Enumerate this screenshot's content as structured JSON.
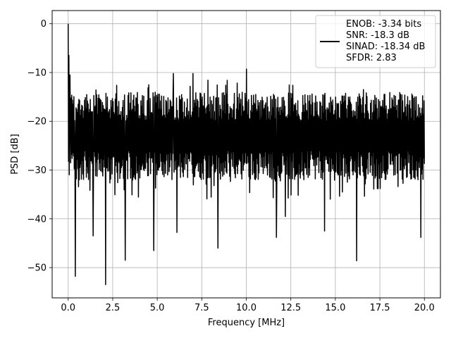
{
  "chart_data": {
    "type": "line",
    "title": "",
    "xlabel": "Frequency [MHz]",
    "ylabel": "PSD [dB]",
    "xlim": [
      -0.9,
      20.9
    ],
    "ylim": [
      -56.2,
      2.7
    ],
    "xticks": [
      0.0,
      2.5,
      5.0,
      7.5,
      10.0,
      12.5,
      15.0,
      17.5,
      20.0
    ],
    "xtick_labels": [
      "0.0",
      "2.5",
      "5.0",
      "7.5",
      "10.0",
      "12.5",
      "15.0",
      "17.5",
      "20.0"
    ],
    "yticks": [
      0,
      -10,
      -20,
      -30,
      -40,
      -50
    ],
    "ytick_labels": [
      "0",
      "−10",
      "−20",
      "−30",
      "−40",
      "−50"
    ],
    "grid": true,
    "legend_position": "top-right",
    "legend_entries": [
      "ENOB: -3.34 bits",
      "SNR: -18.3 dB",
      "SINAD: -18.34 dB",
      "SFDR: 2.83"
    ],
    "series": [
      {
        "color": "#000000",
        "x_range": [
          0.0,
          20.0
        ],
        "points": 1000,
        "peak": {
          "x": 0.0,
          "y": 0.0
        },
        "typical_upper": -14.0,
        "typical_lower": -32.0,
        "spikes_up": [
          {
            "x": 0.05,
            "y": -6.5
          },
          {
            "x": 0.1,
            "y": -10.5
          },
          {
            "x": 10.0,
            "y": -9.3
          },
          {
            "x": 5.9,
            "y": -10.2
          },
          {
            "x": 7.0,
            "y": -10.2
          }
        ],
        "spikes_down": [
          {
            "x": 0.4,
            "y": -51.8
          },
          {
            "x": 2.1,
            "y": -53.5
          },
          {
            "x": 3.2,
            "y": -48.5
          },
          {
            "x": 4.8,
            "y": -46.5
          },
          {
            "x": 16.2,
            "y": -48.6
          },
          {
            "x": 11.7,
            "y": -43.8
          },
          {
            "x": 1.4,
            "y": -43.5
          },
          {
            "x": 19.8,
            "y": -43.8
          },
          {
            "x": 14.4,
            "y": -42.5
          },
          {
            "x": 6.1,
            "y": -42.8
          },
          {
            "x": 8.4,
            "y": -46.0
          },
          {
            "x": 12.2,
            "y": -39.5
          }
        ]
      }
    ]
  }
}
